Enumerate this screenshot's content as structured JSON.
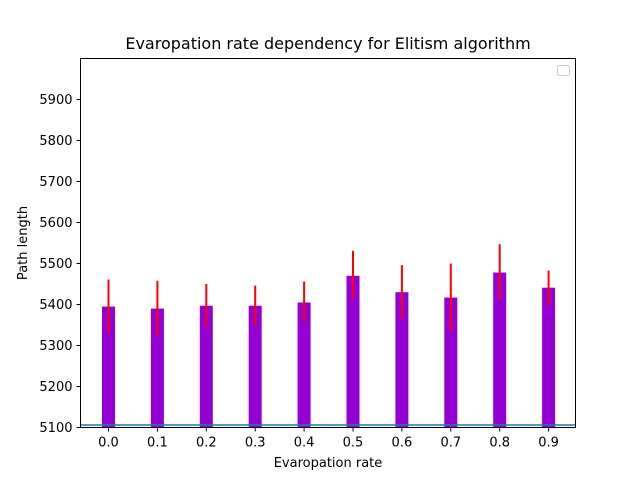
{
  "chart_data": {
    "type": "bar",
    "title": "Evaropation rate dependency for Elitism algorithm",
    "xlabel": "Evaropation rate",
    "ylabel": "Path length",
    "categories": [
      "0.0",
      "0.1",
      "0.2",
      "0.3",
      "0.4",
      "0.5",
      "0.6",
      "0.7",
      "0.8",
      "0.9"
    ],
    "values": [
      5395,
      5390,
      5397,
      5397,
      5405,
      5470,
      5430,
      5417,
      5478,
      5441
    ],
    "error_low": [
      5330,
      5322,
      5345,
      5350,
      5358,
      5415,
      5365,
      5335,
      5412,
      5398
    ],
    "error_high": [
      5461,
      5458,
      5450,
      5446,
      5456,
      5531,
      5496,
      5500,
      5547,
      5483
    ],
    "ylim": [
      5100,
      6000
    ],
    "yticks": [
      5100,
      5200,
      5300,
      5400,
      5500,
      5600,
      5700,
      5800,
      5900
    ],
    "reference_line": 5106,
    "grid": false,
    "legend": "top-right",
    "colors": {
      "bar": "#9400d3",
      "error": "#ff0000",
      "reference_line": "#1f77b4",
      "axis": "#000000"
    }
  }
}
